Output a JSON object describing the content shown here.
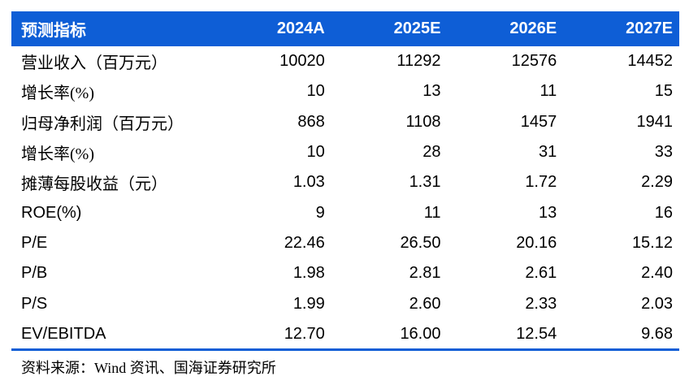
{
  "colors": {
    "header_background": "#0E5ED6",
    "header_text": "#FFFFFF",
    "body_text": "#000000",
    "divider": "#0E5ED6",
    "page_background": "#FFFFFF"
  },
  "table": {
    "header": {
      "label": "预测指标",
      "columns": [
        "2024A",
        "2025E",
        "2026E",
        "2027E"
      ]
    },
    "rows": [
      {
        "label": "营业收入（百万元）",
        "values": [
          "10020",
          "11292",
          "12576",
          "14452"
        ]
      },
      {
        "label": "增长率(%)",
        "values": [
          "10",
          "13",
          "11",
          "15"
        ]
      },
      {
        "label": "归母净利润（百万元）",
        "values": [
          "868",
          "1108",
          "1457",
          "1941"
        ]
      },
      {
        "label": "增长率(%)",
        "values": [
          "10",
          "28",
          "31",
          "33"
        ]
      },
      {
        "label": "摊薄每股收益（元）",
        "values": [
          "1.03",
          "1.31",
          "1.72",
          "2.29"
        ]
      },
      {
        "label": "ROE(%)",
        "values": [
          "9",
          "11",
          "13",
          "16"
        ]
      },
      {
        "label": "P/E",
        "values": [
          "22.46",
          "26.50",
          "20.16",
          "15.12"
        ]
      },
      {
        "label": "P/B",
        "values": [
          "1.98",
          "2.81",
          "2.61",
          "2.40"
        ]
      },
      {
        "label": "P/S",
        "values": [
          "1.99",
          "2.60",
          "2.33",
          "2.03"
        ]
      },
      {
        "label": "EV/EBITDA",
        "values": [
          "12.70",
          "16.00",
          "12.54",
          "9.68"
        ]
      }
    ]
  },
  "footer": {
    "source": "资料来源：Wind 资讯、国海证券研究所"
  },
  "chart_data": {
    "type": "table",
    "title": "预测指标",
    "columns": [
      "预测指标",
      "2024A",
      "2025E",
      "2026E",
      "2027E"
    ],
    "rows": [
      [
        "营业收入（百万元）",
        10020,
        11292,
        12576,
        14452
      ],
      [
        "增长率(%)",
        10,
        13,
        11,
        15
      ],
      [
        "归母净利润（百万元）",
        868,
        1108,
        1457,
        1941
      ],
      [
        "增长率(%)",
        10,
        28,
        31,
        33
      ],
      [
        "摊薄每股收益（元）",
        1.03,
        1.31,
        1.72,
        2.29
      ],
      [
        "ROE(%)",
        9,
        11,
        13,
        16
      ],
      [
        "P/E",
        22.46,
        26.5,
        20.16,
        15.12
      ],
      [
        "P/B",
        1.98,
        2.81,
        2.61,
        2.4
      ],
      [
        "P/S",
        1.99,
        2.6,
        2.33,
        2.03
      ],
      [
        "EV/EBITDA",
        12.7,
        16.0,
        12.54,
        9.68
      ]
    ],
    "source_note": "资料来源：Wind 资讯、国海证券研究所"
  }
}
